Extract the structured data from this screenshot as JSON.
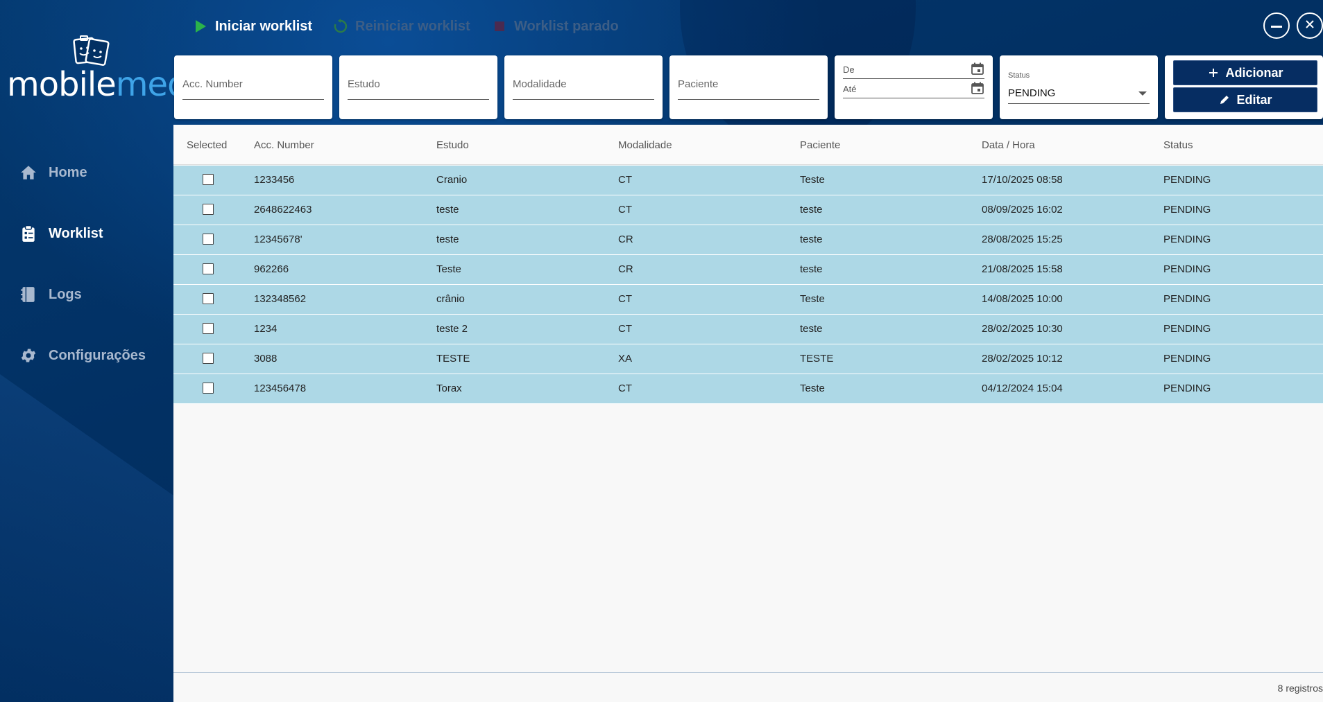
{
  "app": {
    "logo_mobile": "mobile",
    "logo_med": "med"
  },
  "sidebar": {
    "items": [
      {
        "label": "Home",
        "icon": "home-icon"
      },
      {
        "label": "Worklist",
        "icon": "clipboard-list-icon",
        "active": true
      },
      {
        "label": "Logs",
        "icon": "notebook-icon"
      },
      {
        "label": "Configurações",
        "icon": "gear-icon"
      }
    ]
  },
  "toolbar": {
    "start_label": "Iniciar worklist",
    "restart_label": "Reiniciar worklist",
    "stopped_label": "Worklist parado"
  },
  "filters": {
    "acc_number_placeholder": "Acc. Number",
    "estudo_placeholder": "Estudo",
    "modalidade_placeholder": "Modalidade",
    "paciente_placeholder": "Paciente",
    "date_from_label": "De",
    "date_to_label": "Até",
    "status_caption": "Status",
    "status_value": "PENDING",
    "add_label": "Adicionar",
    "edit_label": "Editar"
  },
  "table": {
    "columns": [
      "Selected",
      "Acc. Number",
      "Estudo",
      "Modalidade",
      "Paciente",
      "Data / Hora",
      "Status"
    ],
    "rows": [
      {
        "acc": "1233456",
        "estudo": "Cranio",
        "modalidade": "CT",
        "paciente": "Teste",
        "datahora": "17/10/2025 08:58",
        "status": "PENDING"
      },
      {
        "acc": "2648622463",
        "estudo": "teste",
        "modalidade": "CT",
        "paciente": "teste",
        "datahora": "08/09/2025 16:02",
        "status": "PENDING"
      },
      {
        "acc": "12345678'",
        "estudo": "teste",
        "modalidade": "CR",
        "paciente": "teste",
        "datahora": "28/08/2025 15:25",
        "status": "PENDING"
      },
      {
        "acc": "962266",
        "estudo": "Teste",
        "modalidade": "CR",
        "paciente": "teste",
        "datahora": "21/08/2025 15:58",
        "status": "PENDING"
      },
      {
        "acc": "132348562",
        "estudo": "crânio",
        "modalidade": "CT",
        "paciente": "Teste",
        "datahora": "14/08/2025 10:00",
        "status": "PENDING"
      },
      {
        "acc": "1234",
        "estudo": "teste 2",
        "modalidade": "CT",
        "paciente": "teste",
        "datahora": "28/02/2025 10:30",
        "status": "PENDING"
      },
      {
        "acc": "3088",
        "estudo": "TESTE",
        "modalidade": "XA",
        "paciente": "TESTE",
        "datahora": "28/02/2025 10:12",
        "status": "PENDING"
      },
      {
        "acc": "123456478",
        "estudo": "Torax",
        "modalidade": "CT",
        "paciente": "Teste",
        "datahora": "04/12/2024 15:04",
        "status": "PENDING"
      }
    ],
    "footer_count": "8 registros"
  },
  "colors": {
    "row_bg": "#add8e6",
    "sidebar_bg": "#023063",
    "button_bg": "#062d62",
    "play_green": "#2bb34a"
  }
}
